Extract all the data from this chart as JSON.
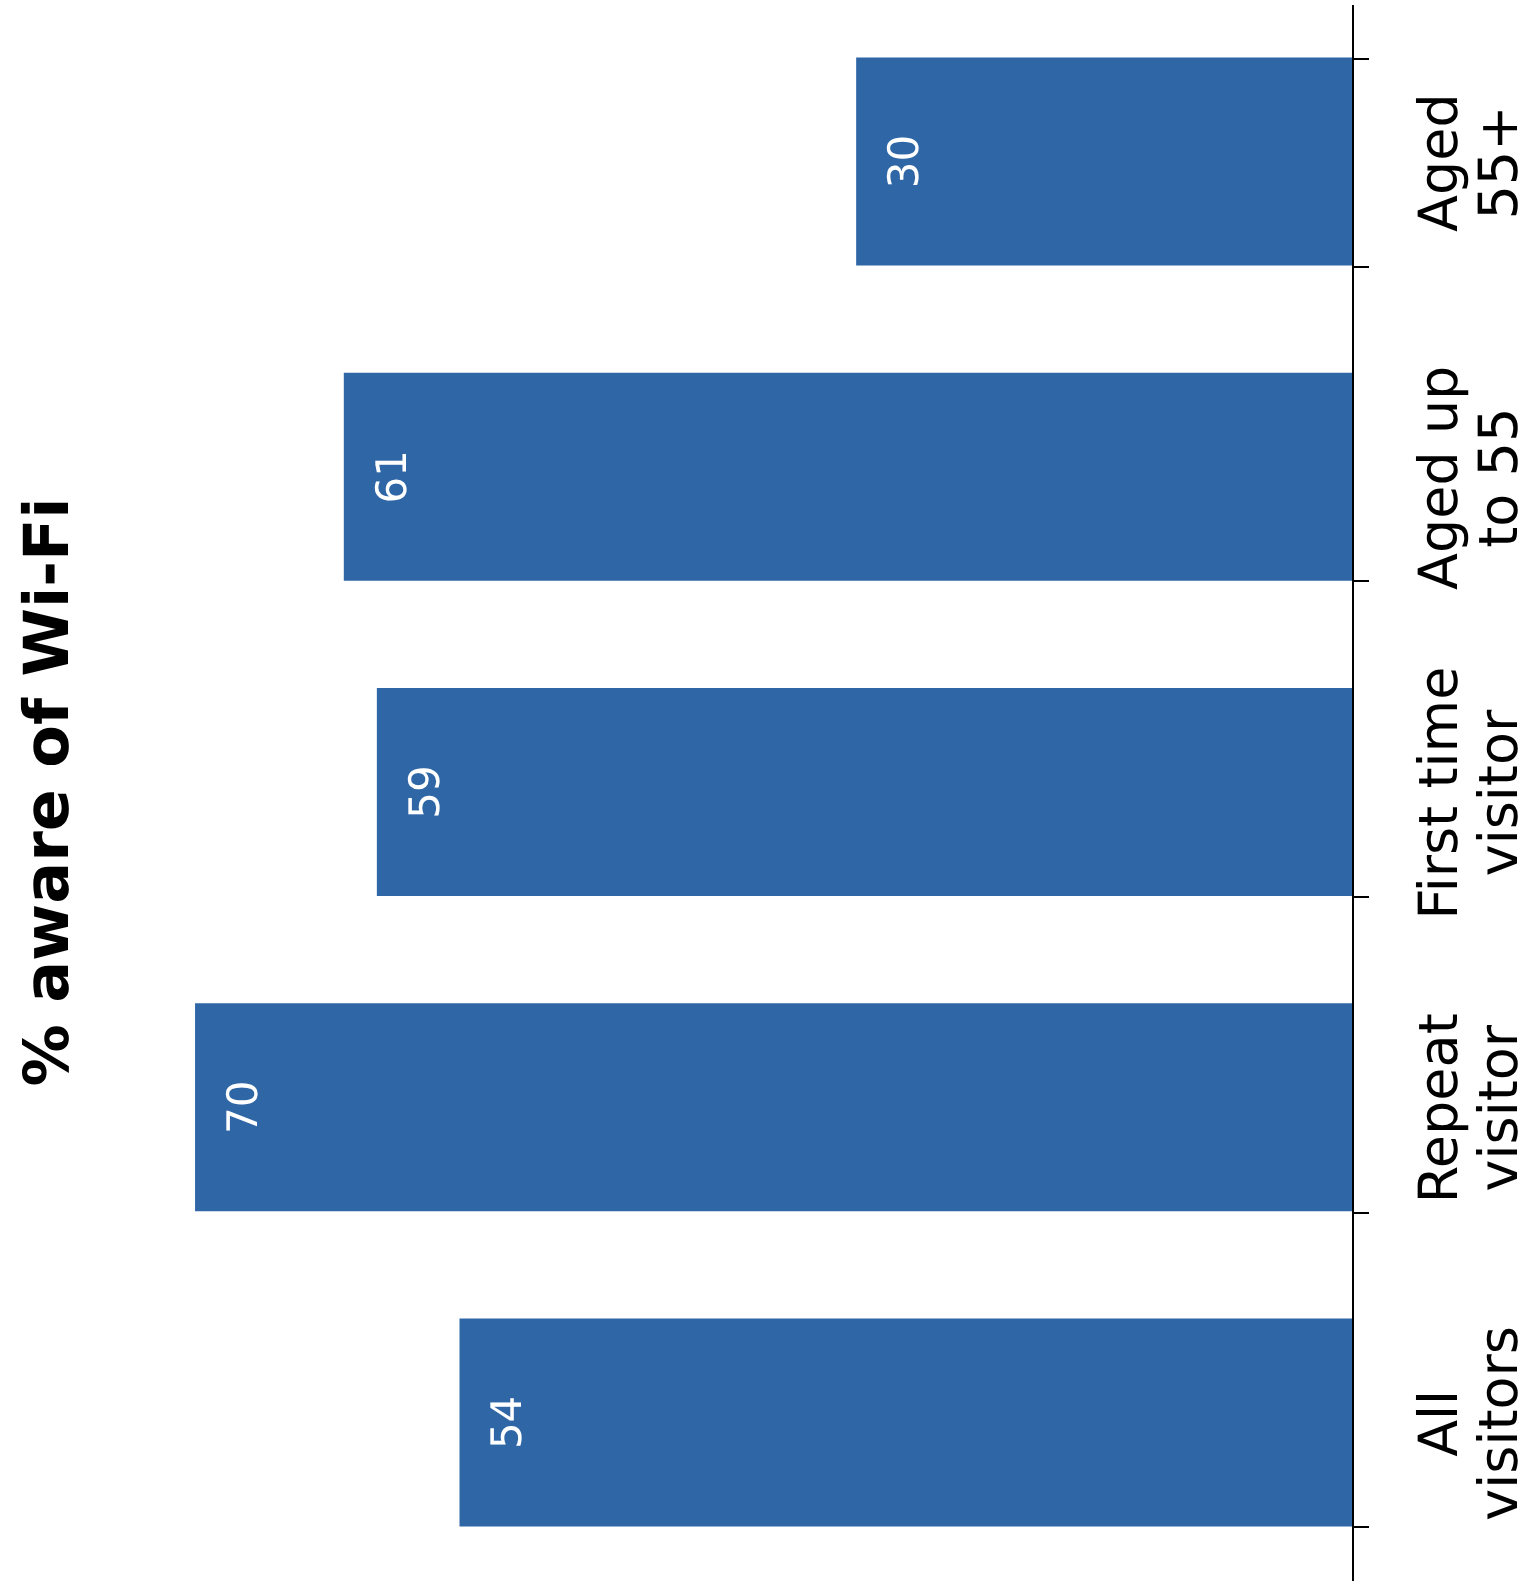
{
  "chart_data": {
    "type": "bar",
    "orientation": "horizontal",
    "title": "% aware of Wi-Fi",
    "categories": [
      "Aged\n55+",
      "Aged up\nto 55",
      "First time\nvisitor",
      "Repeat\nvisitor",
      "All\nvisitors"
    ],
    "values": [
      30,
      61,
      59,
      70,
      54
    ],
    "color": "#2e66a6",
    "data_labels": true
  }
}
